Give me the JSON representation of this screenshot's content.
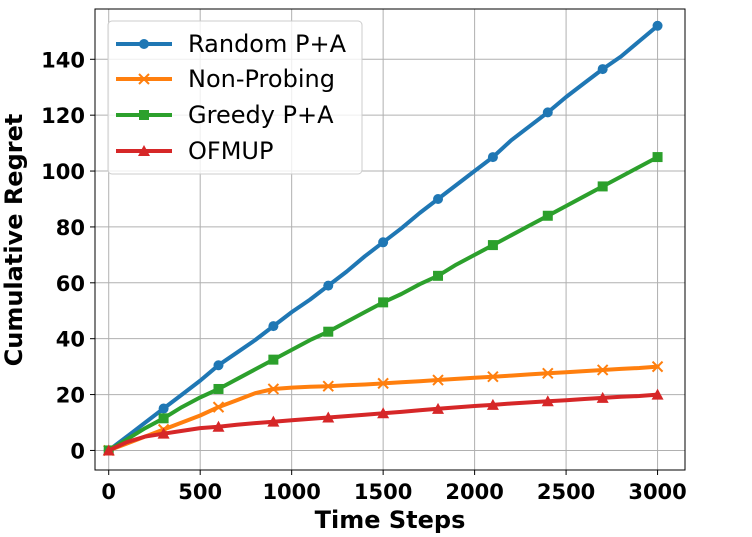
{
  "chart_data": {
    "type": "line",
    "title": "",
    "xlabel": "Time Steps",
    "ylabel": "Cumulative Regret",
    "xlim": [
      -75,
      3150
    ],
    "ylim": [
      -7,
      158
    ],
    "xticks": [
      0,
      500,
      1000,
      1500,
      2000,
      2500,
      3000
    ],
    "yticks": [
      0,
      20,
      40,
      60,
      80,
      100,
      120,
      140
    ],
    "grid": true,
    "legend_position": "top-left",
    "series": [
      {
        "name": "Random P+A",
        "color": "#1f77b4",
        "marker": "circle",
        "x": [
          0,
          100,
          200,
          300,
          400,
          500,
          600,
          700,
          800,
          900,
          1000,
          1100,
          1200,
          1300,
          1400,
          1500,
          1600,
          1700,
          1800,
          1900,
          2000,
          2100,
          2200,
          2300,
          2400,
          2500,
          2600,
          2700,
          2800,
          2900,
          3000
        ],
        "values": [
          0,
          5,
          10,
          15,
          20,
          25,
          30.5,
          35,
          39.5,
          44.5,
          49.5,
          54,
          59,
          64,
          69.5,
          74.5,
          79.5,
          85,
          90,
          95,
          100,
          105,
          111,
          116,
          121,
          126.5,
          131.5,
          136.5,
          141,
          146.5,
          152
        ],
        "marker_x": [
          0,
          300,
          600,
          900,
          1200,
          1500,
          1800,
          2100,
          2400,
          2700,
          3000
        ],
        "marker_values": [
          0,
          15,
          30.5,
          44.5,
          59,
          74.5,
          90,
          105,
          121,
          136.5,
          152
        ]
      },
      {
        "name": "Non-Probing",
        "color": "#ff7f0e",
        "marker": "x",
        "x": [
          0,
          100,
          200,
          300,
          400,
          500,
          600,
          700,
          800,
          900,
          1000,
          1100,
          1200,
          1300,
          1400,
          1500,
          1600,
          1700,
          1800,
          1900,
          2000,
          2100,
          2200,
          2300,
          2400,
          2500,
          2600,
          2700,
          2800,
          2900,
          3000
        ],
        "values": [
          0,
          2.5,
          5,
          7.5,
          10,
          12.5,
          15.5,
          18,
          20.5,
          22,
          22.5,
          22.8,
          23,
          23.3,
          23.6,
          24,
          24.4,
          24.8,
          25.2,
          25.6,
          26,
          26.4,
          26.8,
          27.2,
          27.6,
          28,
          28.4,
          28.8,
          29.2,
          29.5,
          30
        ],
        "marker_x": [
          0,
          300,
          600,
          900,
          1200,
          1500,
          1800,
          2100,
          2400,
          2700,
          3000
        ],
        "marker_values": [
          0,
          7.5,
          15.5,
          22,
          23,
          24,
          25.2,
          26.4,
          27.6,
          28.8,
          30
        ]
      },
      {
        "name": "Greedy P+A",
        "color": "#2ca02c",
        "marker": "square",
        "x": [
          0,
          100,
          200,
          300,
          400,
          500,
          600,
          700,
          800,
          900,
          1000,
          1100,
          1200,
          1300,
          1400,
          1500,
          1600,
          1700,
          1800,
          1900,
          2000,
          2100,
          2200,
          2300,
          2400,
          2500,
          2600,
          2700,
          2800,
          2900,
          3000
        ],
        "values": [
          0,
          4,
          8,
          11.5,
          15.5,
          19,
          22,
          25.5,
          29,
          32.5,
          36,
          39.5,
          42.5,
          46,
          49.5,
          53,
          56,
          59.5,
          62.5,
          66.5,
          70,
          73.5,
          77,
          80.5,
          84,
          87.5,
          91,
          94.5,
          98,
          101.5,
          105
        ],
        "marker_x": [
          0,
          300,
          600,
          900,
          1200,
          1500,
          1800,
          2100,
          2400,
          2700,
          3000
        ],
        "marker_values": [
          0,
          11.5,
          22,
          32.5,
          42.5,
          53,
          62.5,
          73.5,
          84,
          94.5,
          105
        ]
      },
      {
        "name": "OFMUP",
        "color": "#d62728",
        "marker": "triangle",
        "x": [
          0,
          100,
          200,
          300,
          400,
          500,
          600,
          700,
          800,
          900,
          1000,
          1100,
          1200,
          1300,
          1400,
          1500,
          1600,
          1700,
          1800,
          1900,
          2000,
          2100,
          2200,
          2300,
          2400,
          2500,
          2600,
          2700,
          2800,
          2900,
          3000
        ],
        "values": [
          0,
          3,
          5,
          6,
          7,
          8,
          8.5,
          9.2,
          9.8,
          10.3,
          10.8,
          11.3,
          11.8,
          12.3,
          12.8,
          13.3,
          13.8,
          14.4,
          14.9,
          15.4,
          15.9,
          16.3,
          16.8,
          17.2,
          17.6,
          18,
          18.4,
          18.8,
          19.2,
          19.5,
          20
        ],
        "marker_x": [
          0,
          300,
          600,
          900,
          1200,
          1500,
          1800,
          2100,
          2400,
          2700,
          3000
        ],
        "marker_values": [
          0,
          6,
          8.5,
          10.3,
          11.8,
          13.3,
          14.9,
          16.3,
          17.6,
          18.8,
          20
        ]
      }
    ]
  }
}
